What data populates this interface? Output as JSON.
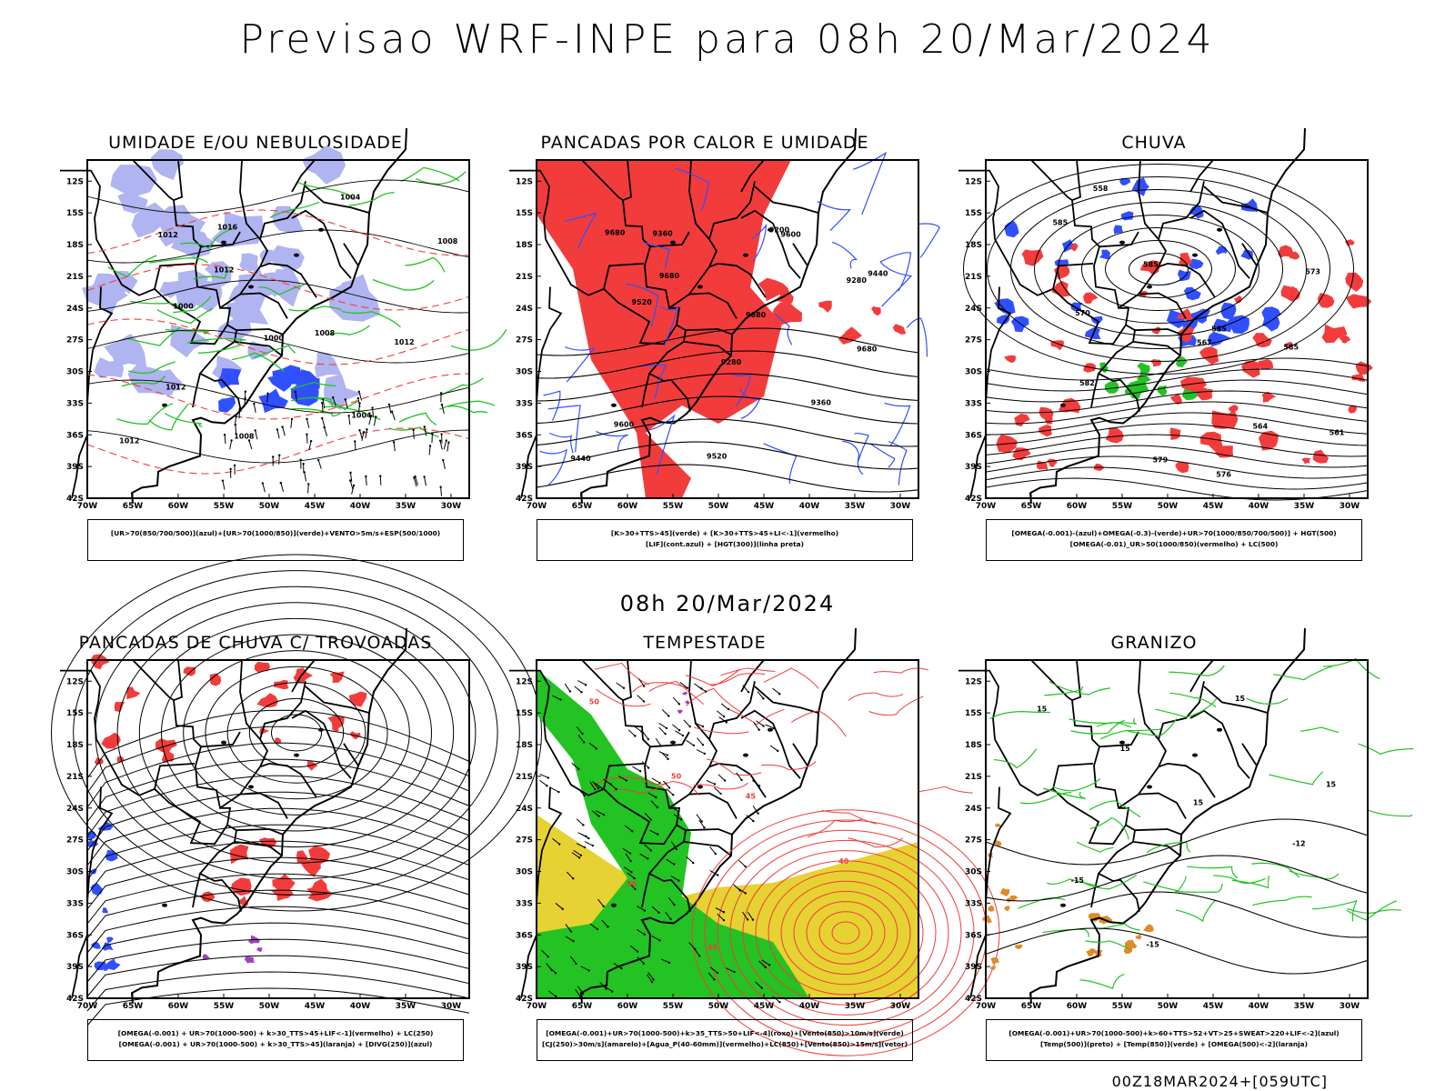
{
  "title": "Previsao WRF-INPE  para 08h 20/Mar/2024",
  "mid_title": "08h 20/Mar/2024",
  "footer": "00Z18MAR2024+[059UTC]",
  "lat_labels": [
    "12S",
    "15S",
    "18S",
    "21S",
    "24S",
    "27S",
    "30S",
    "33S",
    "36S",
    "39S",
    "42S"
  ],
  "lon_labels": [
    "70W",
    "65W",
    "60W",
    "55W",
    "50W",
    "45W",
    "40W",
    "35W",
    "30W"
  ],
  "panels": [
    {
      "title": "UMIDADE E/OU NEBULOSIDADE",
      "legend": [
        "[UR>70(850/700/500)](azul)+[UR>70(1000/850)](verde)+VENTO>5m/s+ESP(500/1000)"
      ],
      "contour_labels": [
        "1012",
        "1012",
        "1008",
        "1012",
        "1012",
        "1008",
        "1004",
        "1008",
        "1000",
        "1000",
        "1004",
        "1012",
        "1016"
      ]
    },
    {
      "title": "PANCADAS POR CALOR E UMIDADE",
      "legend": [
        "[K>30+TTS>45](verde) + [K>30+TTS>45+LI<-1](vermelho)",
        "[LIF](cont.azul) + [HGT(300)](linha preta)"
      ],
      "contour_labels": [
        "9680",
        "9680",
        "9680",
        "9680",
        "9600",
        "9520",
        "9600",
        "9440",
        "9520",
        "9280",
        "9360",
        "9440",
        "9360",
        "9200",
        "9280"
      ]
    },
    {
      "title": "CHUVA",
      "legend": [
        "[OMEGA(-0.001)-(azul)+OMEGA(-0.3)-(verde)+UR>70(1000/850/700/500)] + HGT(500)",
        "[OMEGA(-0.01)_UR>50(1000/850)(vermelho) + LC(500)"
      ],
      "contour_labels": [
        "585",
        "585",
        "585",
        "585",
        "582",
        "579",
        "576",
        "573",
        "570",
        "567",
        "564",
        "561",
        "558"
      ]
    },
    {
      "title": "PANCADAS DE CHUVA C/ TROVOADAS",
      "legend": [
        "[OMEGA(-0.001) + UR>70(1000-500) + k>30_TTS>45+LIF<-1](vermelho) + LC(250)",
        "[OMEGA(-0.001) + UR>70(1000-500) + k>30_TTS>45](laranja) + [DIVG(250)](azul)"
      ],
      "contour_labels": []
    },
    {
      "title": "TEMPESTADE",
      "legend": [
        "[OMEGA(-0.001)+UR>70(1000-500)+k>35_TTS>50+LIF<-4](roxo)+[Vento(850)>10m/s](verde)",
        "[CJ(250)>30m/s](amarelo)+[Agua_P(40-60mm)](vermelho)+LC(850)+[Vento(850)>15m/s](vetor)"
      ],
      "contour_labels": [
        "50",
        "50",
        "45",
        "40",
        "50",
        "45"
      ]
    },
    {
      "title": "GRANIZO",
      "legend": [
        "[OMEGA(-0.001)+UR>70(1000-500)+k>60+TTS>52+VT>25+SWEAT>220+LIF<-2](azul)",
        "[Temp(500)](preto) + [Temp(850)](verde) + [OMEGA(500)<-2](laranja)"
      ],
      "contour_labels": [
        "15",
        "15",
        "15",
        "-12",
        "-15",
        "-15",
        "15",
        "15"
      ]
    }
  ],
  "colors": {
    "frame": "#000000",
    "blue": "#3050ff",
    "lightblue": "#b0b4f0",
    "green": "#22c322",
    "red": "#f23c3c",
    "yellow": "#e6d232",
    "orange": "#e08a2a",
    "purple": "#a040c0"
  }
}
